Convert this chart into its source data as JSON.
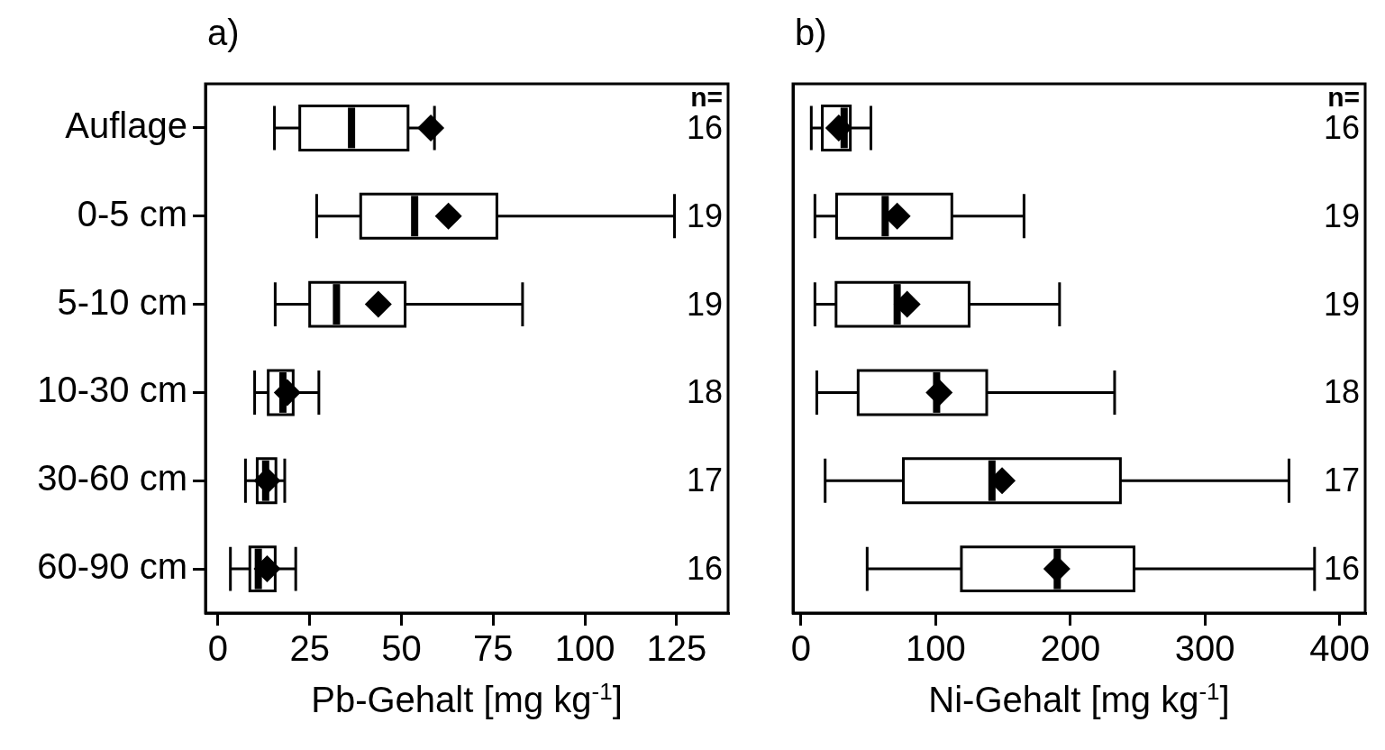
{
  "chart_data": [
    {
      "type": "box",
      "orientation": "horizontal",
      "title": "a)",
      "xlabel": "Pb-Gehalt [mg kg$^{-1}$]",
      "categories": [
        "Auflage",
        "0-5 cm",
        "5-10 cm",
        "10-30 cm",
        "30-60 cm",
        "60-90 cm"
      ],
      "boxes": [
        {
          "low": 15.4,
          "q1": 22.3,
          "median": 36.4,
          "q3": 51.8,
          "high": 59,
          "mean": 58
        },
        {
          "low": 26.9,
          "q1": 38.9,
          "median": 53.6,
          "q3": 76,
          "high": 124.4,
          "mean": 62.8
        },
        {
          "low": 15.6,
          "q1": 25,
          "median": 32.3,
          "q3": 51,
          "high": 83,
          "mean": 43.7
        },
        {
          "low": 10,
          "q1": 13.7,
          "median": 17.7,
          "q3": 20.5,
          "high": 27.5,
          "mean": 18.9
        },
        {
          "low": 7.5,
          "q1": 10.7,
          "median": 13,
          "q3": 15.8,
          "high": 18.2,
          "mean": 13.4
        },
        {
          "low": 3.4,
          "q1": 8.7,
          "median": 11,
          "q3": 15.6,
          "high": 21.2,
          "mean": 13.4
        }
      ],
      "xlim": [
        -3.4,
        139
      ],
      "xticks": [
        0,
        25,
        50,
        75,
        100,
        125
      ],
      "grid": false,
      "legend": false,
      "marker": "diamond",
      "annotations": [
        "n=",
        "16",
        "19",
        "19",
        "18",
        "17",
        "16"
      ]
    },
    {
      "type": "box",
      "orientation": "horizontal",
      "title": "b)",
      "xlabel": "Ni-Gehalt [mg kg$^{-1}$]",
      "categories": [
        null,
        null,
        null,
        null,
        null,
        null
      ],
      "boxes": [
        {
          "low": 7.6,
          "q1": 15.8,
          "median": 32,
          "q3": 36.6,
          "high": 51.9,
          "mean": 28
        },
        {
          "low": 10.3,
          "q1": 26.4,
          "median": 62.5,
          "q3": 112,
          "high": 165.6,
          "mean": 71.4
        },
        {
          "low": 10.3,
          "q1": 26,
          "median": 71.4,
          "q3": 124.8,
          "high": 192,
          "mean": 78.8
        },
        {
          "low": 11.7,
          "q1": 42.4,
          "median": 100.7,
          "q3": 137.9,
          "high": 232.9,
          "mean": 102.6
        },
        {
          "low": 17.9,
          "q1": 76,
          "median": 141.8,
          "q3": 237.2,
          "high": 362.4,
          "mean": 149.3
        },
        {
          "low": 49.1,
          "q1": 119.1,
          "median": 190.3,
          "q3": 247.3,
          "high": 381.4,
          "mean": 190
        }
      ],
      "xlim": [
        -6,
        419
      ],
      "xticks": [
        0,
        100,
        200,
        300,
        400
      ],
      "grid": false,
      "legend": false,
      "marker": "diamond",
      "tick_labels": "x",
      "annotations": [
        "n=",
        "16",
        "19",
        "19",
        "18",
        "17",
        "16"
      ]
    }
  ]
}
